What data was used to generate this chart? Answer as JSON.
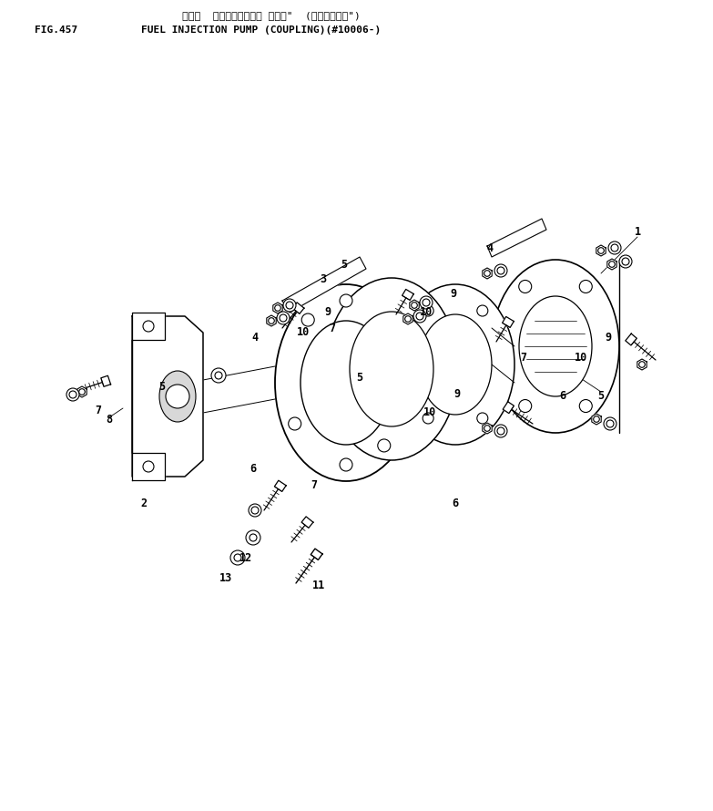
{
  "title_japanese": "フェル  インジェクション ボンプ\"  (カップリング\")",
  "title_fig": "FIG.457",
  "title_english": "FUEL INJECTION PUMP (COUPLING)(#10006-)",
  "bg_color": "#ffffff",
  "line_color": "#000000",
  "label_color": "#000000",
  "fig_width": 7.83,
  "fig_height": 8.9,
  "dpi": 100
}
